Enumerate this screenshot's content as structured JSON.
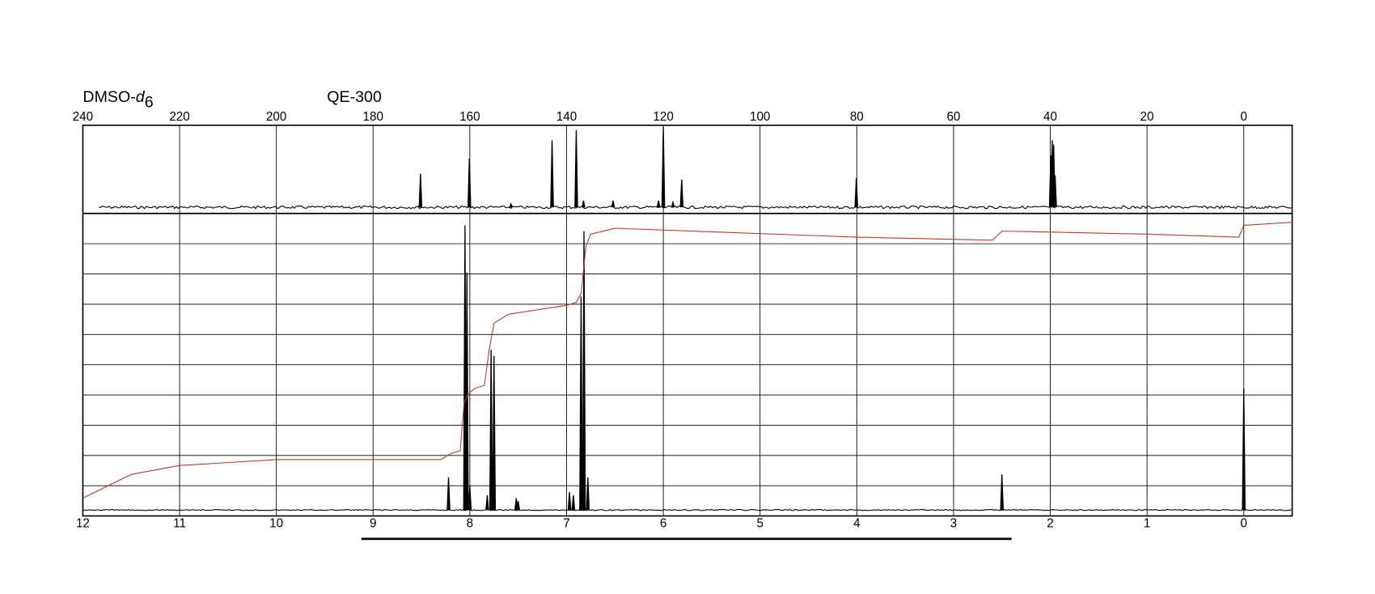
{
  "header": {
    "solvent": {
      "prefix": "DMSO-",
      "italic": "d",
      "subscript": "6"
    },
    "instrument": "QE-300"
  },
  "chart_data": [
    {
      "type": "stick",
      "nucleus_panel": "13C",
      "xlim": [
        240,
        -10
      ],
      "ylim": [
        0,
        100
      ],
      "xticks": [
        240,
        220,
        200,
        180,
        160,
        140,
        120,
        100,
        80,
        60,
        40,
        20,
        0
      ],
      "grid": true,
      "color": "#000000",
      "x": [
        170.2,
        160.1,
        151.5,
        143.0,
        138.0,
        136.5,
        130.4,
        121.0,
        120.0,
        118.0,
        116.2,
        80.1,
        39.9,
        39.6,
        39.3,
        39.0
      ],
      "values": [
        40,
        58,
        4,
        80,
        92,
        8,
        8,
        8,
        96,
        6,
        33,
        35,
        62,
        80,
        75,
        38
      ]
    },
    {
      "type": "stick",
      "nucleus_panel": "1H",
      "xlim": [
        12,
        -0.5
      ],
      "ylim": [
        -2,
        100
      ],
      "xticks": [
        12,
        11,
        10,
        9,
        8,
        7,
        6,
        5,
        4,
        3,
        2,
        1,
        0
      ],
      "grid": true,
      "grid_divisions": 10,
      "color": "#000000",
      "x": [
        8.22,
        8.05,
        8.03,
        8.0,
        7.82,
        7.78,
        7.75,
        7.52,
        7.5,
        6.97,
        6.93,
        6.85,
        6.82,
        6.78,
        2.5,
        0.0
      ],
      "values": [
        11,
        96,
        80,
        8,
        5,
        54,
        52,
        4,
        3,
        6,
        5,
        72,
        94,
        11,
        12,
        41
      ],
      "integral": {
        "color": "#c0392b",
        "x": [
          12,
          11.5,
          11,
          10,
          9,
          8.3,
          8.2,
          8.1,
          8.06,
          8.02,
          7.95,
          7.85,
          7.8,
          7.75,
          7.6,
          7.0,
          6.9,
          6.85,
          6.8,
          6.75,
          6.5,
          4,
          2.6,
          2.5,
          2.4,
          1,
          0.05,
          0,
          -0.5
        ],
        "values": [
          4,
          12,
          15,
          17,
          17,
          17,
          19,
          20,
          36,
          39,
          41,
          42,
          54,
          63,
          66,
          69,
          70,
          73,
          89,
          93,
          95,
          92,
          91,
          94,
          94,
          93,
          92,
          96,
          97
        ]
      },
      "range_bar": [
        9.12,
        2.4
      ]
    }
  ]
}
